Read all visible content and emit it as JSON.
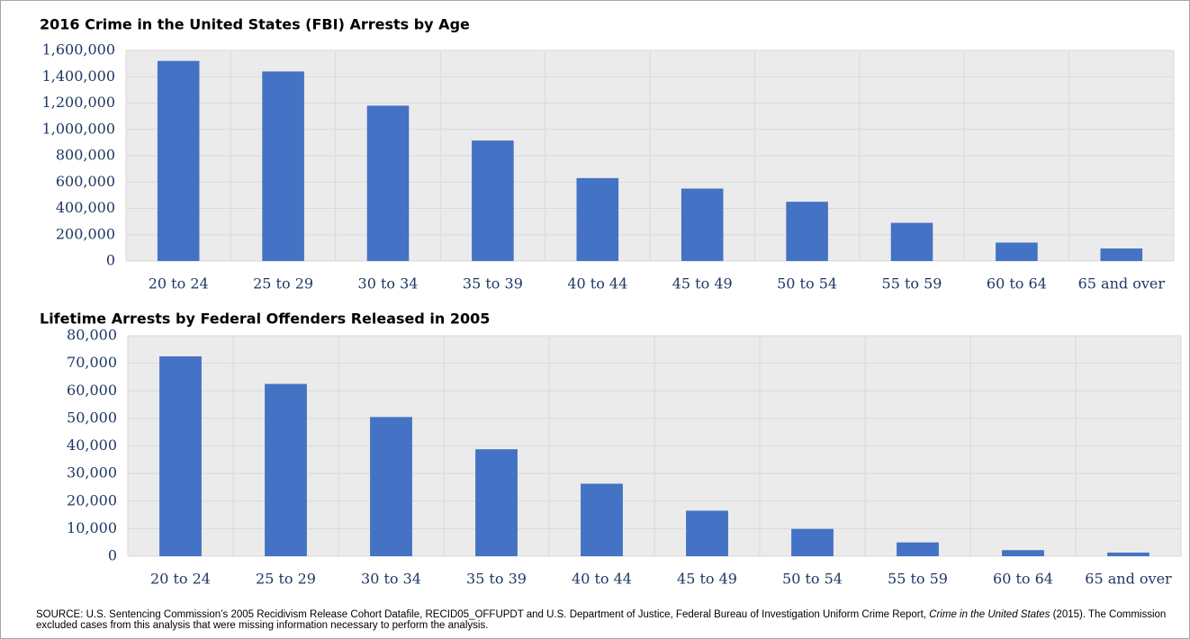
{
  "chart_data": [
    {
      "type": "bar",
      "title": "2016 Crime in the United States (FBI) Arrests by Age",
      "categories": [
        "20 to 24",
        "25 to 29",
        "30 to 34",
        "35 to 39",
        "40 to 44",
        "45 to 49",
        "50 to 54",
        "55 to 59",
        "60 to 64",
        "65 and over"
      ],
      "values": [
        1520000,
        1440000,
        1180000,
        915000,
        630000,
        550000,
        450000,
        290000,
        140000,
        95000
      ],
      "color": "#4472c4",
      "ylim": [
        0,
        1600000
      ],
      "yticks": [
        0,
        {
          "value": 200000,
          "label": "200,000"
        },
        {
          "value": 400000,
          "label": "400,000"
        },
        {
          "value": 600000,
          "label": "600,000"
        },
        {
          "value": 800000,
          "label": "800,000"
        },
        {
          "value": 1000000,
          "label": "1,000,000"
        },
        {
          "value": 1200000,
          "label": "1,200,000"
        },
        {
          "value": 1400000,
          "label": "1,400,000"
        },
        {
          "value": 1600000,
          "label": "1,600,000"
        }
      ],
      "grid": true
    },
    {
      "type": "bar",
      "title": "Lifetime Arrests by Federal Offenders Released in 2005",
      "categories": [
        "20 to 24",
        "25 to 29",
        "30 to 34",
        "35 to 39",
        "40 to 44",
        "45 to 49",
        "50 to 54",
        "55 to 59",
        "60 to 64",
        "65 and over"
      ],
      "values": [
        72500,
        62500,
        50500,
        38800,
        26300,
        16500,
        9900,
        5000,
        2200,
        1300
      ],
      "color": "#4472c4",
      "ylim": [
        0,
        80000
      ],
      "yticks": [
        0,
        {
          "value": 10000,
          "label": "10,000"
        },
        {
          "value": 20000,
          "label": "20,000"
        },
        {
          "value": 30000,
          "label": "30,000"
        },
        {
          "value": 40000,
          "label": "40,000"
        },
        {
          "value": 50000,
          "label": "50,000"
        },
        {
          "value": 60000,
          "label": "60,000"
        },
        {
          "value": 70000,
          "label": "70,000"
        },
        {
          "value": 80000,
          "label": "80,000"
        }
      ],
      "grid": true
    }
  ],
  "source": [
    "SOURCE: U.S. Sentencing Commission’s 2005 Recidivism Release Cohort Datafile, RECID05_OFFUPDT and U.S. Department of Justice, Federal Bureau of Investigation Uniform Crime Report, ",
    "Crime in the United States",
    " (2015). The Commission excluded cases from this analysis that were missing information necessary to perform the analysis."
  ]
}
